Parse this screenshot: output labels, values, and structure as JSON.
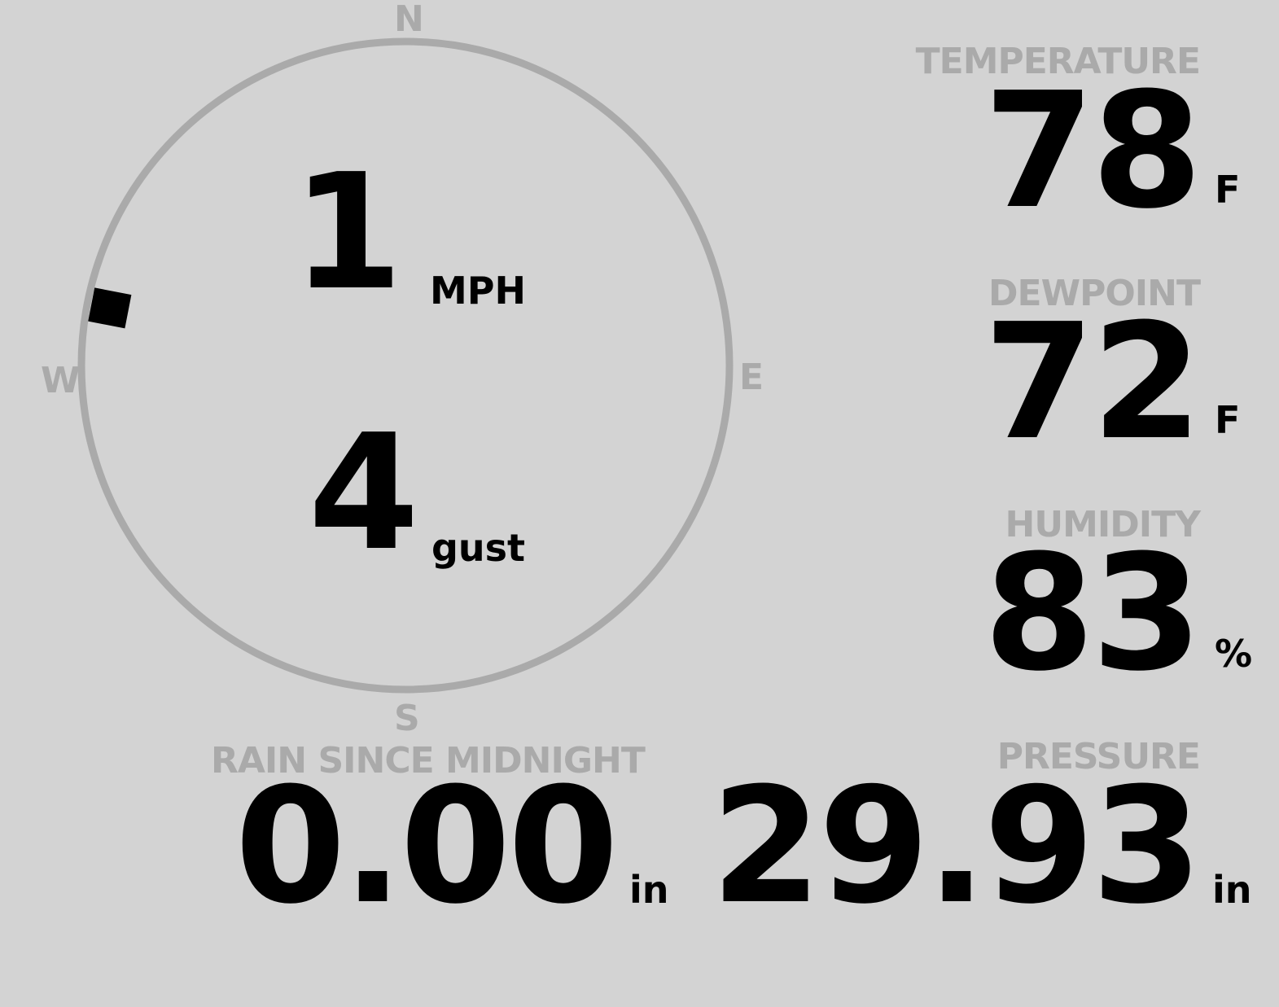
{
  "colors": {
    "background": "#d3d3d3",
    "muted": "#aaaaaa",
    "value": "#000000"
  },
  "wind": {
    "compass": {
      "north": "N",
      "east": "E",
      "south": "S",
      "west": "W"
    },
    "direction_degrees": 281,
    "speed": "1",
    "speed_unit": "MPH",
    "gust": "4",
    "gust_unit": "gust"
  },
  "temperature": {
    "label": "TEMPERATURE",
    "value": "78",
    "unit": "F"
  },
  "dewpoint": {
    "label": "DEWPOINT",
    "value": "72",
    "unit": "F"
  },
  "humidity": {
    "label": "HUMIDITY",
    "value": "83",
    "unit": "%"
  },
  "rain": {
    "label": "RAIN SINCE MIDNIGHT",
    "value": "0.00",
    "unit": "in"
  },
  "pressure": {
    "label": "PRESSURE",
    "value": "29.93",
    "unit": "in"
  }
}
